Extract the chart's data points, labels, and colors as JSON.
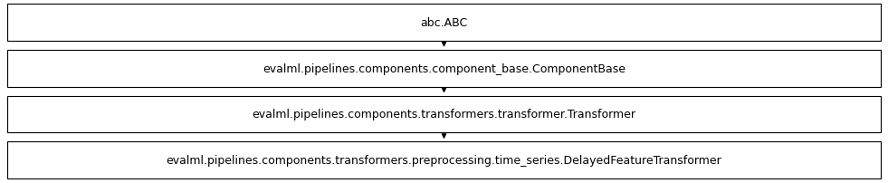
{
  "nodes": [
    "abc.ABC",
    "evalml.pipelines.components.component_base.ComponentBase",
    "evalml.pipelines.components.transformers.transformer.Transformer",
    "evalml.pipelines.components.transformers.preprocessing.time_series.DelayedFeatureTransformer"
  ],
  "bg_color": "#ffffff",
  "box_edge_color": "#000000",
  "box_face_color": "#ffffff",
  "arrow_color": "#000000",
  "text_color": "#000000",
  "font_size": 9,
  "fig_width": 9.81,
  "fig_height": 2.03,
  "dpi": 100
}
